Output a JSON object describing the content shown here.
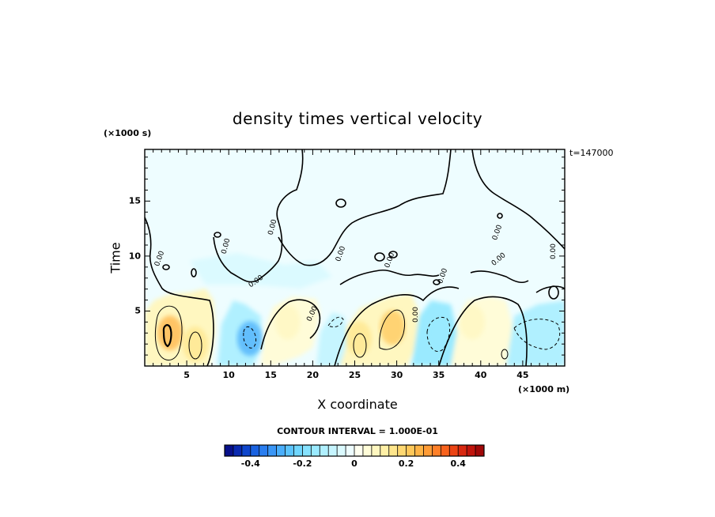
{
  "chart_data": {
    "type": "heatmap",
    "title": "density times vertical velocity",
    "xlabel": "X coordinate",
    "ylabel": "Time",
    "x_unit_label": "(×1000 m)",
    "y_unit_label": "(×1000 s)",
    "time_label": "t=147000",
    "xlim": [
      0,
      50
    ],
    "ylim": [
      0,
      19.7
    ],
    "x_ticks": [
      {
        "v": 5,
        "label": "5"
      },
      {
        "v": 10,
        "label": "10"
      },
      {
        "v": 15,
        "label": "15"
      },
      {
        "v": 20,
        "label": "20"
      },
      {
        "v": 25,
        "label": "25"
      },
      {
        "v": 30,
        "label": "30"
      },
      {
        "v": 35,
        "label": "35"
      },
      {
        "v": 40,
        "label": "40"
      },
      {
        "v": 45,
        "label": "45"
      }
    ],
    "y_ticks": [
      {
        "v": 5,
        "label": "5"
      },
      {
        "v": 10,
        "label": "10"
      },
      {
        "v": 15,
        "label": "15"
      }
    ],
    "contour_interval_label": "CONTOUR INTERVAL = 1.000E-01",
    "zero_contour_label": "0.00",
    "colorbar": {
      "range": [
        -0.5,
        0.5
      ],
      "ticks": [
        {
          "v": -0.4,
          "label": "-0.4"
        },
        {
          "v": -0.2,
          "label": "-0.2"
        },
        {
          "v": 0,
          "label": "0"
        },
        {
          "v": 0.2,
          "label": "0.2"
        },
        {
          "v": 0.4,
          "label": "0.4"
        }
      ],
      "colors": [
        "#08108a",
        "#0a2ab0",
        "#0f46cc",
        "#1a62e0",
        "#2a7ef0",
        "#3a96f6",
        "#4aaefb",
        "#5cc4fd",
        "#70d6fe",
        "#86e2ff",
        "#9aeaff",
        "#b0f0ff",
        "#c6f5ff",
        "#dbfaff",
        "#eefdff",
        "#fffff0",
        "#fffcd8",
        "#fff7c0",
        "#fff0a6",
        "#ffe68c",
        "#ffd872",
        "#ffc85a",
        "#ffb446",
        "#ff9c36",
        "#ff8028",
        "#f8621c",
        "#ec4414",
        "#d82810",
        "#c0140c",
        "#a00808"
      ]
    },
    "features": [
      {
        "x": 3,
        "y": 3.0,
        "value": 0.26
      },
      {
        "x": 6,
        "y": 2.0,
        "value": 0.16
      },
      {
        "x": 12.5,
        "y": 2.5,
        "value": -0.27
      },
      {
        "x": 17,
        "y": 4.0,
        "value": 0.09
      },
      {
        "x": 25.5,
        "y": 2.5,
        "value": 0.14
      },
      {
        "x": 29.5,
        "y": 3.5,
        "value": 0.2
      },
      {
        "x": 35,
        "y": 3.0,
        "value": -0.16
      },
      {
        "x": 39,
        "y": 4.0,
        "value": 0.09
      },
      {
        "x": 46,
        "y": 3.0,
        "value": -0.12
      }
    ]
  }
}
